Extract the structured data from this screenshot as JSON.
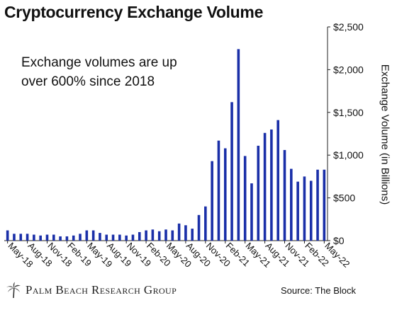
{
  "chart_data": {
    "type": "bar",
    "title": "Cryptocurrency Exchange Volume",
    "ylabel": "Exchange Volume (in Billions)",
    "xlabel": "",
    "ylim": [
      0,
      2500
    ],
    "y_ticks": [
      "$0",
      "$500",
      "$1,000",
      "$1,500",
      "$2,000",
      "$2,500"
    ],
    "y_tick_values": [
      0,
      500,
      1000,
      1500,
      2000,
      2500
    ],
    "grid": false,
    "bar_color": "#1a2fa8",
    "categories": [
      "May-18",
      "Jun-18",
      "Jul-18",
      "Aug-18",
      "Sep-18",
      "Oct-18",
      "Nov-18",
      "Dec-18",
      "Jan-19",
      "Feb-19",
      "Mar-19",
      "Apr-19",
      "May-19",
      "Jun-19",
      "Jul-19",
      "Aug-19",
      "Sep-19",
      "Oct-19",
      "Nov-19",
      "Dec-19",
      "Jan-20",
      "Feb-20",
      "Mar-20",
      "Apr-20",
      "May-20",
      "Jun-20",
      "Jul-20",
      "Aug-20",
      "Sep-20",
      "Oct-20",
      "Nov-20",
      "Dec-20",
      "Jan-21",
      "Feb-21",
      "Mar-21",
      "Apr-21",
      "May-21",
      "Jun-21",
      "Jul-21",
      "Aug-21",
      "Sep-21",
      "Oct-21",
      "Nov-21",
      "Dec-21",
      "Jan-22",
      "Feb-22",
      "Mar-22",
      "Apr-22",
      "May-22"
    ],
    "values": [
      120,
      80,
      80,
      80,
      70,
      60,
      70,
      70,
      50,
      50,
      60,
      80,
      120,
      120,
      90,
      70,
      70,
      70,
      60,
      70,
      100,
      120,
      130,
      110,
      130,
      120,
      200,
      180,
      140,
      300,
      400,
      930,
      1170,
      1080,
      1620,
      2240,
      990,
      670,
      1110,
      1260,
      1300,
      1410,
      1060,
      840,
      690,
      750,
      700,
      830,
      830
    ],
    "x_tick_labels": [
      "May-18",
      "Aug-18",
      "Nov-18",
      "Feb-19",
      "May-19",
      "Aug-19",
      "Nov-19",
      "Feb-20",
      "May-20",
      "Aug-20",
      "Nov-20",
      "Feb-21",
      "May-21",
      "Aug-21",
      "Nov-21",
      "Feb-22",
      "May-22"
    ]
  },
  "annotation": {
    "line1": "Exchange volumes are up",
    "line2": "over 600% since 2018"
  },
  "footer": {
    "logo_text": "Palm Beach Research Group",
    "source": "Source: The Block"
  }
}
